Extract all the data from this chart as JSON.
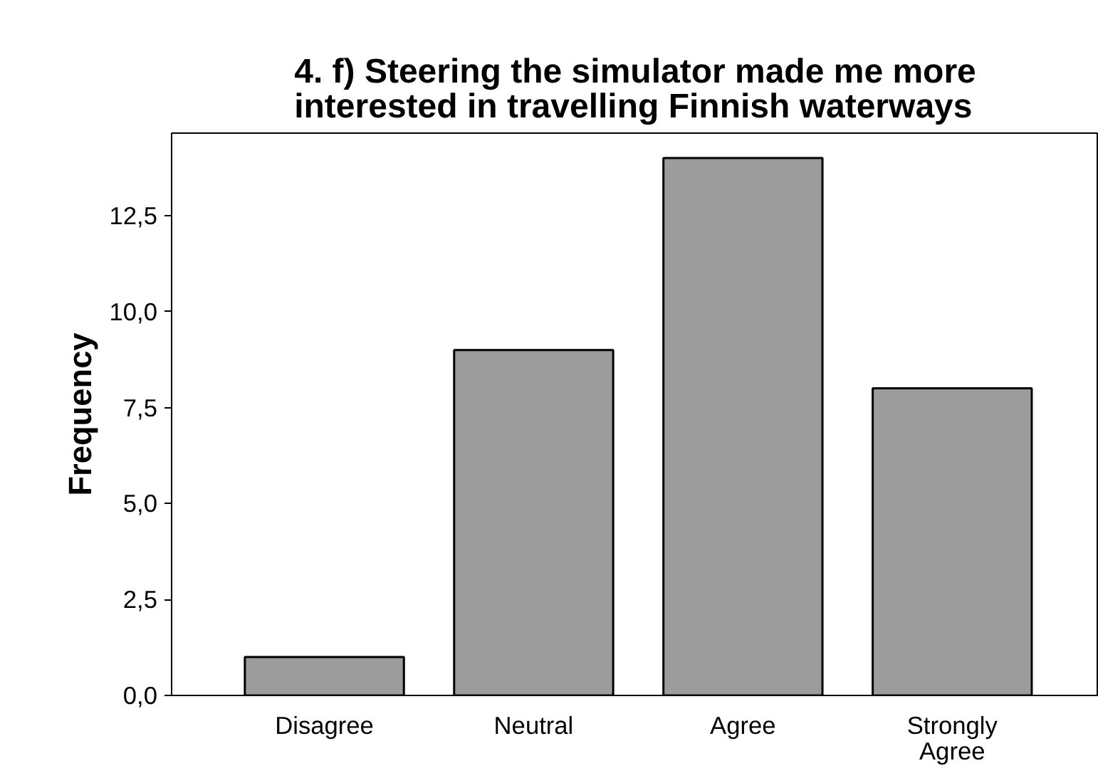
{
  "chart_data": {
    "type": "bar",
    "title": "4. f) Steering the simulator made me more interested in travelling Finnish waterways",
    "ylabel": "Frequency",
    "categories": [
      "Disagree",
      "Neutral",
      "Agree",
      "Strongly Agree"
    ],
    "values": [
      1,
      9,
      14,
      8
    ],
    "color": "#9c9c9c",
    "ylim": [
      0,
      14.65
    ],
    "yticks": [
      {
        "value": 0,
        "label": "0,0"
      },
      {
        "value": 2.5,
        "label": "2,5"
      },
      {
        "value": 5,
        "label": "5,0"
      },
      {
        "value": 7.5,
        "label": "7,5"
      },
      {
        "value": 10,
        "label": "10,0"
      },
      {
        "value": 12.5,
        "label": "12,5"
      }
    ],
    "grid": false
  }
}
